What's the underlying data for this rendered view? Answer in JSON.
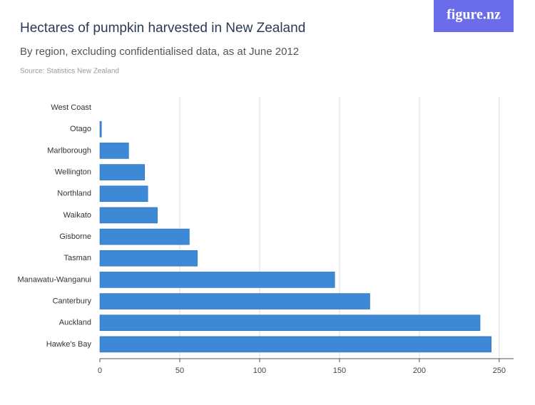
{
  "logo": "figure.nz",
  "chart_data": {
    "type": "hbar",
    "title": "Hectares of pumpkin harvested in New Zealand",
    "subtitle": "By region, excluding confidentialised data, as at June 2012",
    "source": "Source: Statistics New Zealand",
    "categories": [
      "West Coast",
      "Otago",
      "Marlborough",
      "Wellington",
      "Northland",
      "Waikato",
      "Gisborne",
      "Tasman",
      "Manawatu-Wanganui",
      "Canterbury",
      "Auckland",
      "Hawke's Bay"
    ],
    "values": [
      0,
      1,
      18,
      28,
      30,
      36,
      56,
      61,
      147,
      169,
      238,
      245
    ],
    "color": "#3d89d6",
    "xlim": [
      0,
      259
    ],
    "xticks": [
      0,
      50,
      100,
      150,
      200,
      250
    ],
    "grid": true
  }
}
